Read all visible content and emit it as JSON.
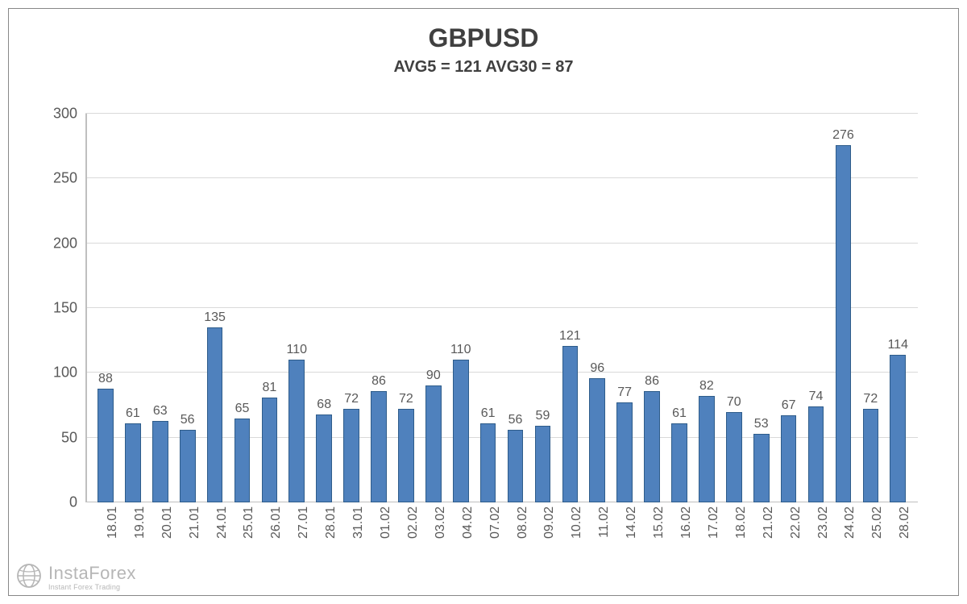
{
  "chart": {
    "type": "bar",
    "title": "GBPUSD",
    "subtitle": "AVG5 = 121 AVG30 = 87",
    "title_fontsize": 32,
    "subtitle_fontsize": 20,
    "title_color": "#404040",
    "background_color": "#ffffff",
    "border_color": "#888888",
    "grid_color": "#d9d9d9",
    "axis_color": "#bfbfbf",
    "bar_fill": "#4f81bd",
    "bar_border": "#2e5c8a",
    "label_color": "#595959",
    "label_fontsize": 18,
    "value_fontsize": 16,
    "xlabel_fontsize": 16,
    "ylim": [
      0,
      300
    ],
    "ytick_step": 50,
    "yticks": [
      0,
      50,
      100,
      150,
      200,
      250,
      300
    ],
    "bar_width_ratio": 0.58,
    "categories": [
      "18.01",
      "19.01",
      "20.01",
      "21.01",
      "24.01",
      "25.01",
      "26.01",
      "27.01",
      "28.01",
      "31.01",
      "01.02",
      "02.02",
      "03.02",
      "04.02",
      "07.02",
      "08.02",
      "09.02",
      "10.02",
      "11.02",
      "14.02",
      "15.02",
      "16.02",
      "17.02",
      "18.02",
      "21.02",
      "22.02",
      "23.02",
      "24.02",
      "25.02",
      "28.02"
    ],
    "values": [
      88,
      61,
      63,
      56,
      135,
      65,
      81,
      110,
      68,
      72,
      86,
      72,
      90,
      110,
      61,
      56,
      59,
      121,
      96,
      77,
      86,
      61,
      82,
      70,
      53,
      67,
      74,
      276,
      72,
      114
    ]
  },
  "watermark": {
    "main": "InstaForex",
    "sub": "Instant Forex Trading",
    "icon_name": "globe-icon",
    "color": "#aaaaaa"
  }
}
